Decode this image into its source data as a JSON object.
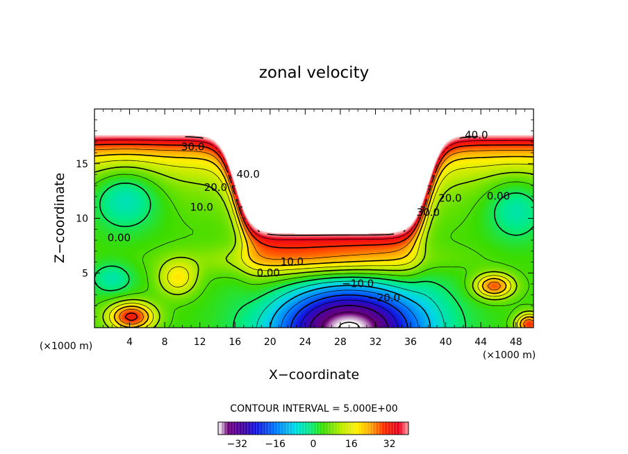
{
  "chart_data": {
    "type": "heatmap",
    "title": "zonal velocity",
    "xlabel": "X−coordinate",
    "ylabel": "Z−coordinate",
    "x_unit_left": "(×1000 m)",
    "x_unit_right": "(×1000 m)",
    "xlim": [
      0,
      50
    ],
    "ylim": [
      0,
      20
    ],
    "x_ticks": [
      {
        "value": 4,
        "label": "4"
      },
      {
        "value": 8,
        "label": "8"
      },
      {
        "value": 12,
        "label": "12"
      },
      {
        "value": 16,
        "label": "16"
      },
      {
        "value": 20,
        "label": "20"
      },
      {
        "value": 24,
        "label": "24"
      },
      {
        "value": 28,
        "label": "28"
      },
      {
        "value": 32,
        "label": "32"
      },
      {
        "value": 36,
        "label": "36"
      },
      {
        "value": 40,
        "label": "40"
      },
      {
        "value": 44,
        "label": "44"
      },
      {
        "value": 48,
        "label": "48"
      }
    ],
    "y_ticks": [
      {
        "value": 5,
        "label": "5"
      },
      {
        "value": 10,
        "label": "10"
      },
      {
        "value": 15,
        "label": "15"
      }
    ],
    "contour_interval_text": "CONTOUR INTERVAL = 5.000E+00",
    "contour_interval": 5,
    "value_range": [
      -40,
      40
    ],
    "contour_labels": [
      {
        "text": "30.0",
        "x": 11.2,
        "z": 16.5
      },
      {
        "text": "40.0",
        "x": 17.5,
        "z": 14.0
      },
      {
        "text": "20.0",
        "x": 13.8,
        "z": 12.8
      },
      {
        "text": "10.0",
        "x": 12.2,
        "z": 11.0
      },
      {
        "text": "0.00",
        "x": 2.8,
        "z": 8.2
      },
      {
        "text": "10.0",
        "x": 22.5,
        "z": 6.0
      },
      {
        "text": "0.00",
        "x": 19.8,
        "z": 5.0
      },
      {
        "text": "−10.0",
        "x": 30.0,
        "z": 4.0
      },
      {
        "text": "−20.0",
        "x": 33.0,
        "z": 2.7
      },
      {
        "text": "30.0",
        "x": 38.0,
        "z": 10.5
      },
      {
        "text": "20.0",
        "x": 40.5,
        "z": 11.8
      },
      {
        "text": "40.0",
        "x": 43.5,
        "z": 17.6
      },
      {
        "text": "0.00",
        "x": 46.0,
        "z": 12.0
      }
    ],
    "colorbar": {
      "min": -40,
      "max": 40,
      "ticks": [
        {
          "value": -32,
          "label": "−32"
        },
        {
          "value": -16,
          "label": "−16"
        },
        {
          "value": 0,
          "label": "0"
        },
        {
          "value": 16,
          "label": "16"
        },
        {
          "value": 32,
          "label": "32"
        }
      ]
    }
  }
}
